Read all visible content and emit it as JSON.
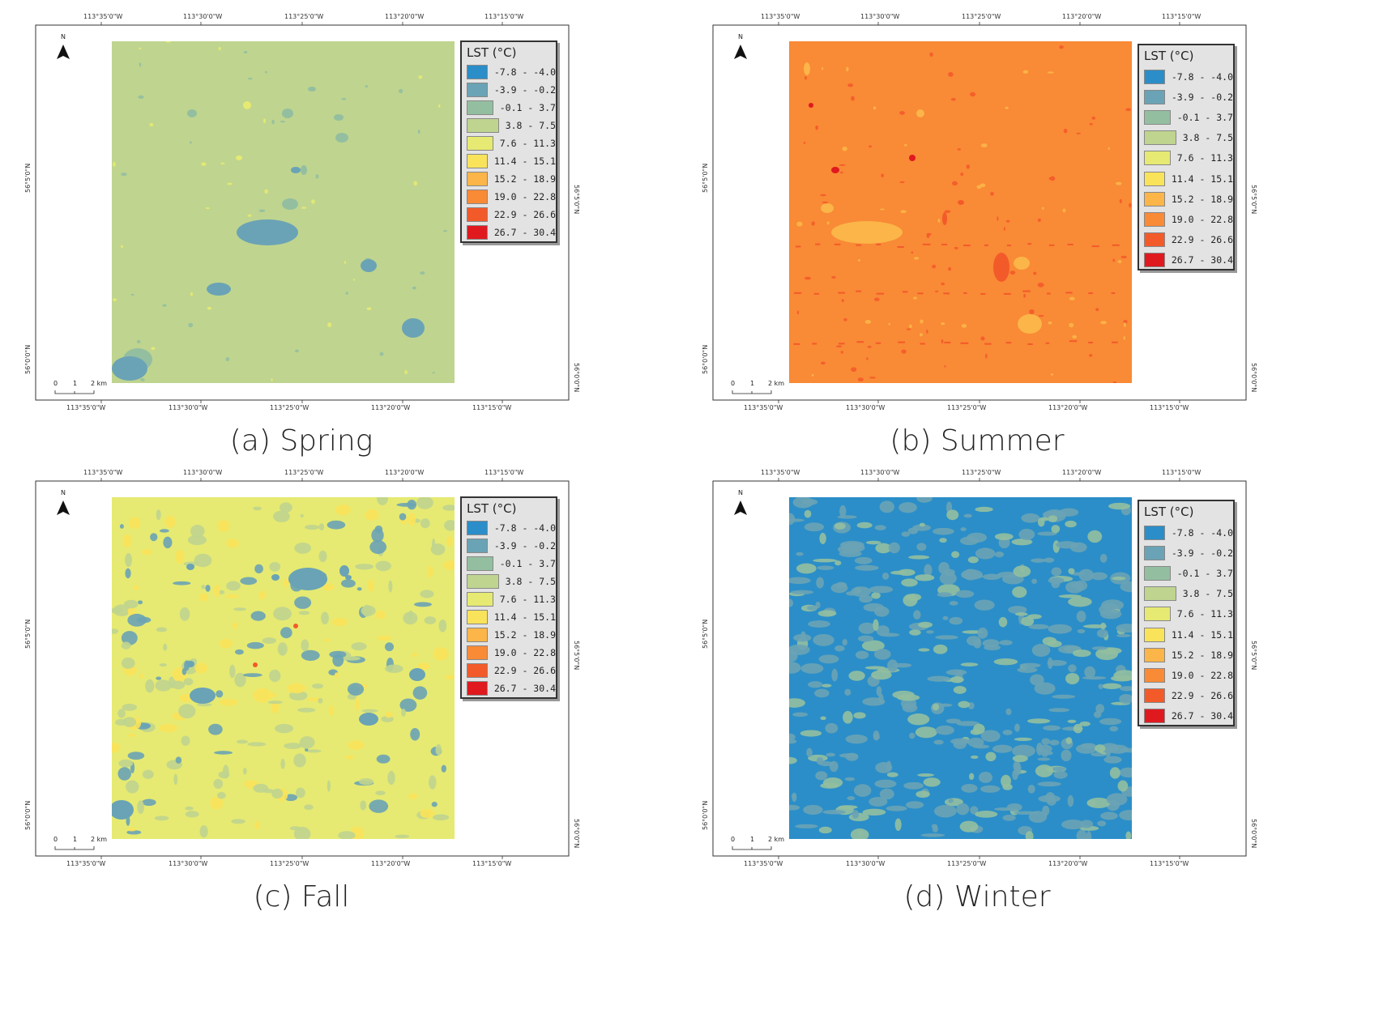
{
  "legend": {
    "title": "LST (°C)",
    "classes": [
      {
        "label": "-7.8 - -4.0",
        "color": "#2b8ec8"
      },
      {
        "label": "-3.9 - -0.2",
        "color": "#6aa3b5"
      },
      {
        "label": "-0.1 - 3.7",
        "color": "#93bfa0"
      },
      {
        "label": "3.8 - 7.5",
        "color": "#bfd48f"
      },
      {
        "label": "7.6 - 11.3",
        "color": "#e6ea72"
      },
      {
        "label": "11.4 - 15.1",
        "color": "#f9e35a"
      },
      {
        "label": "15.2 - 18.9",
        "color": "#fbb548"
      },
      {
        "label": "19.0 - 22.8",
        "color": "#f98a36"
      },
      {
        "label": "22.9 - 26.6",
        "color": "#f35a2a"
      },
      {
        "label": "26.7 - 30.4",
        "color": "#e0191f"
      }
    ]
  },
  "axes": {
    "top_ticks": [
      "113°35'0\"W",
      "113°30'0\"W",
      "113°25'0\"W",
      "113°20'0\"W",
      "113°15'0\"W"
    ],
    "bottom_ticks": [
      "113°35'0\"W",
      "113°30'0\"W",
      "113°25'0\"W",
      "113°20'0\"W",
      "113°15'0\"W"
    ],
    "left_ticks": [
      "56°5'0\"N",
      "56°0'0\"N"
    ],
    "right_ticks": [
      "56°5'0\"N",
      "56°0'0\"N"
    ]
  },
  "north_label": "N",
  "scale_bar": {
    "labels": [
      "0",
      "1",
      "2 km"
    ]
  },
  "panels": [
    {
      "caption": "(a) Spring",
      "season": "spring",
      "base_class": 3
    },
    {
      "caption": "(b) Summer",
      "season": "summer",
      "base_class": 7
    },
    {
      "caption": "(c) Fall",
      "season": "fall",
      "base_class": 4
    },
    {
      "caption": "(d) Winter",
      "season": "winter",
      "base_class": 0
    }
  ]
}
